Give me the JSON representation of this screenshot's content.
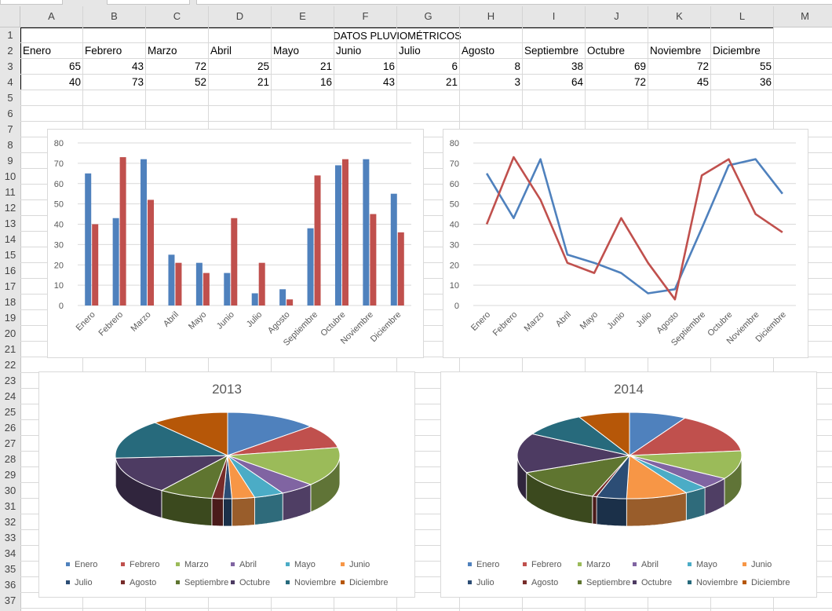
{
  "sheet": {
    "columns": [
      "A",
      "B",
      "C",
      "D",
      "E",
      "F",
      "G",
      "H",
      "I",
      "J",
      "K",
      "L",
      "M"
    ],
    "rows": [
      "1",
      "2",
      "3",
      "4",
      "5",
      "6",
      "7",
      "8",
      "9",
      "10",
      "11",
      "12",
      "13",
      "14",
      "15",
      "16",
      "17",
      "18",
      "19",
      "20",
      "21",
      "22",
      "23",
      "24",
      "25",
      "26",
      "27",
      "28",
      "29",
      "30",
      "31",
      "32",
      "33",
      "34",
      "35",
      "36",
      "37"
    ],
    "table_title": "DATOS PLUVIOMÉTRICOS",
    "months": [
      "Enero",
      "Febrero",
      "Marzo",
      "Abril",
      "Mayo",
      "Junio",
      "Julio",
      "Agosto",
      "Septiembre",
      "Octubre",
      "Noviembre",
      "Diciembre"
    ],
    "row3": [
      "65",
      "43",
      "72",
      "25",
      "21",
      "16",
      "6",
      "8",
      "38",
      "69",
      "72",
      "55"
    ],
    "row4": [
      "40",
      "73",
      "52",
      "21",
      "16",
      "43",
      "21",
      "3",
      "64",
      "72",
      "45",
      "36"
    ]
  },
  "chart_data": [
    {
      "type": "bar",
      "categories": [
        "Enero",
        "Febrero",
        "Marzo",
        "Abril",
        "Mayo",
        "Junio",
        "Julio",
        "Agosto",
        "Septiembre",
        "Octubre",
        "Noviembre",
        "Diciembre"
      ],
      "series": [
        {
          "values": [
            65,
            43,
            72,
            25,
            21,
            16,
            6,
            8,
            38,
            69,
            72,
            55
          ],
          "color": "#4f81bd"
        },
        {
          "values": [
            40,
            73,
            52,
            21,
            16,
            43,
            21,
            3,
            64,
            72,
            45,
            36
          ],
          "color": "#c0504d"
        }
      ],
      "ylim": [
        0,
        80
      ],
      "yticks": [
        "0",
        "10",
        "20",
        "30",
        "40",
        "50",
        "60",
        "70",
        "80"
      ],
      "grid": true
    },
    {
      "type": "line",
      "categories": [
        "Enero",
        "Febrero",
        "Marzo",
        "Abril",
        "Mayo",
        "Junio",
        "Julio",
        "Agosto",
        "Septiembre",
        "Octubre",
        "Noviembre",
        "Diciembre"
      ],
      "series": [
        {
          "values": [
            65,
            43,
            72,
            25,
            21,
            16,
            6,
            8,
            38,
            69,
            72,
            55
          ],
          "color": "#4f81bd"
        },
        {
          "values": [
            40,
            73,
            52,
            21,
            16,
            43,
            21,
            3,
            64,
            72,
            45,
            36
          ],
          "color": "#c0504d"
        }
      ],
      "ylim": [
        0,
        80
      ],
      "yticks": [
        "0",
        "10",
        "20",
        "30",
        "40",
        "50",
        "60",
        "70",
        "80"
      ],
      "grid": true
    },
    {
      "type": "pie",
      "title": "2013",
      "labels": [
        "Enero",
        "Febrero",
        "Marzo",
        "Abril",
        "Mayo",
        "Junio",
        "Julio",
        "Agosto",
        "Septiembre",
        "Octubre",
        "Noviembre",
        "Diciembre"
      ],
      "values": [
        65,
        43,
        72,
        25,
        21,
        16,
        6,
        8,
        38,
        69,
        72,
        55
      ],
      "colors": [
        "#4f81bd",
        "#c0504d",
        "#9bbb59",
        "#8064a2",
        "#4bacc6",
        "#f79646",
        "#2c4d75",
        "#772c2a",
        "#5f7530",
        "#4d3b62",
        "#276a7c",
        "#b65708"
      ],
      "legend": "bottom"
    },
    {
      "type": "pie",
      "title": "2014",
      "labels": [
        "Enero",
        "Febrero",
        "Marzo",
        "Abril",
        "Mayo",
        "Junio",
        "Julio",
        "Agosto",
        "Septiembre",
        "Octubre",
        "Noviembre",
        "Diciembre"
      ],
      "values": [
        40,
        73,
        52,
        21,
        16,
        43,
        21,
        3,
        64,
        72,
        45,
        36
      ],
      "colors": [
        "#4f81bd",
        "#c0504d",
        "#9bbb59",
        "#8064a2",
        "#4bacc6",
        "#f79646",
        "#2c4d75",
        "#772c2a",
        "#5f7530",
        "#4d3b62",
        "#276a7c",
        "#b65708"
      ],
      "legend": "bottom"
    }
  ]
}
